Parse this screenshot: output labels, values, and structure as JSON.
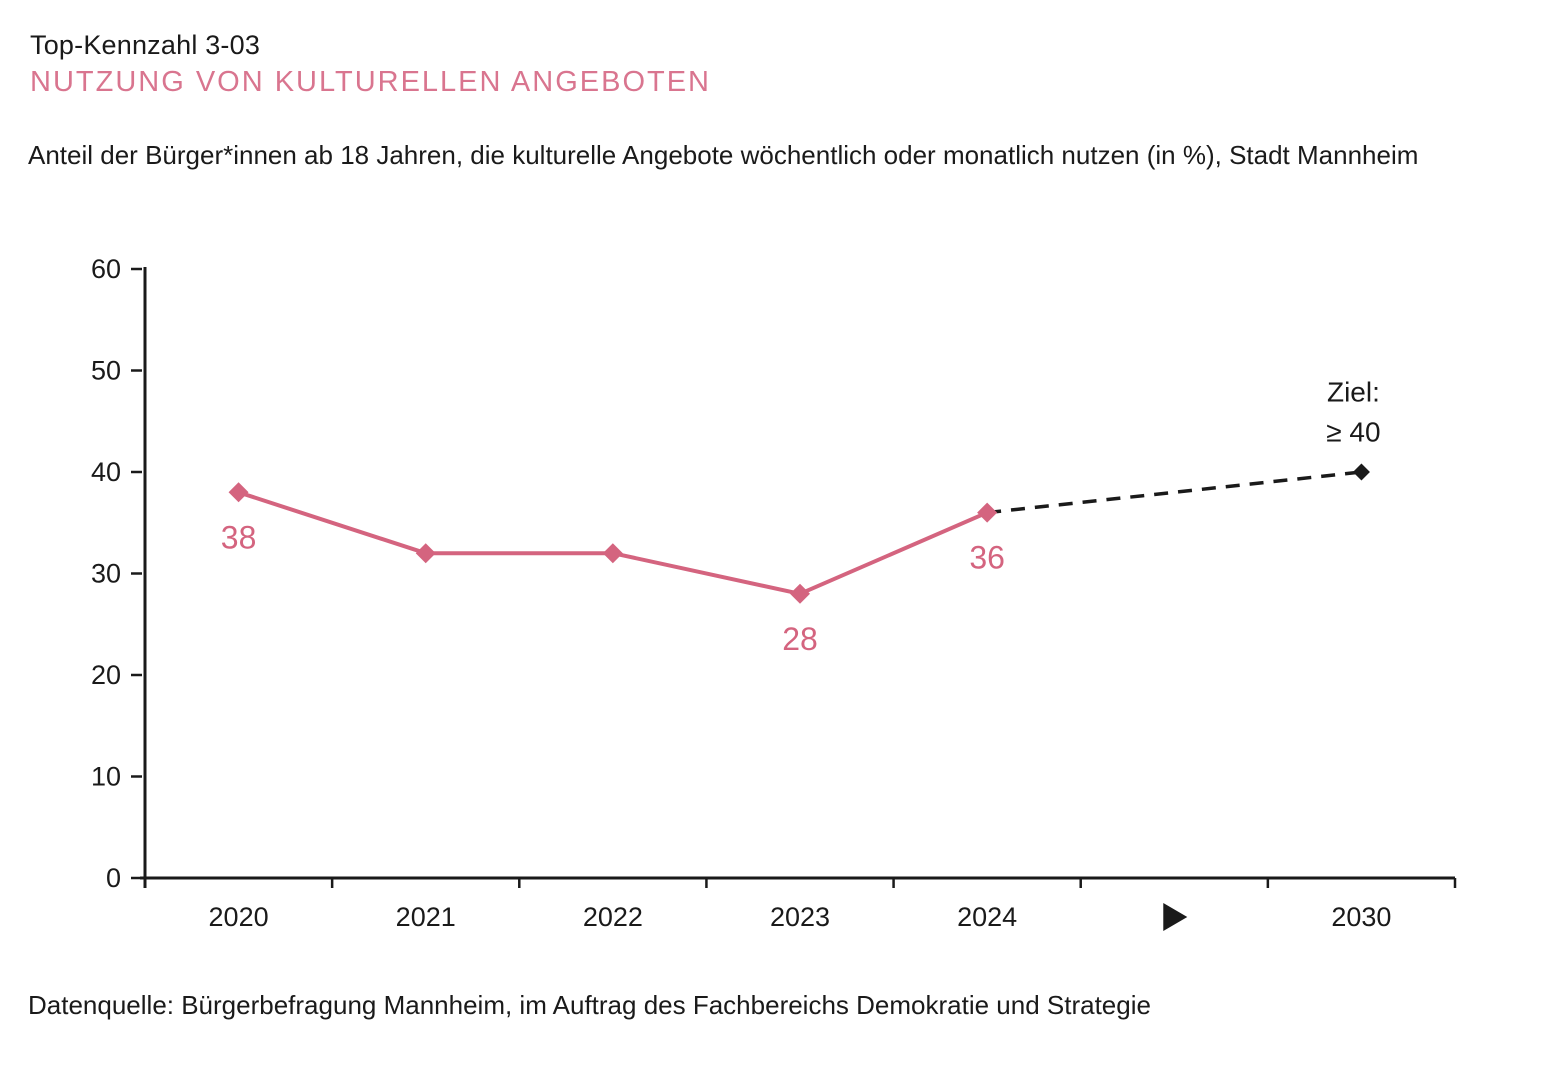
{
  "page": {
    "kennzahl_label": "Top-Kennzahl 3-03",
    "title": "NUTZUNG VON KULTURELLEN ANGEBOTEN",
    "description": "Anteil der Bürger*innen ab 18 Jahren, die kulturelle Angebote wöchentlich oder monatlich nutzen (in %), Stadt Mannheim",
    "source": "Datenquelle: Bürgerbefragung Mannheim, im Auftrag des Fachbereichs Demokratie und Strategie"
  },
  "colors": {
    "series_pink": "#d4647f",
    "title_pink": "#d9758f",
    "text_black": "#1a1a1a"
  },
  "chart_data": {
    "type": "line",
    "title": "Nutzung von kulturellen Angeboten (in %), Stadt Mannheim",
    "categories": [
      "2020",
      "2021",
      "2022",
      "2023",
      "2024"
    ],
    "values": [
      38,
      32,
      32,
      28,
      36
    ],
    "point_labels": [
      "38",
      null,
      null,
      "28",
      "36"
    ],
    "target": {
      "category": "2030",
      "value": 40,
      "label_lines": [
        "Ziel:",
        "≥ 40"
      ],
      "connector_style": "dashed"
    },
    "gap_icon": "arrow-right",
    "xlabel": "",
    "ylabel": "",
    "ylim": [
      0,
      60
    ],
    "yticks": [
      0,
      10,
      20,
      30,
      40,
      50,
      60
    ],
    "grid": false,
    "legend": false,
    "marker": "diamond"
  }
}
